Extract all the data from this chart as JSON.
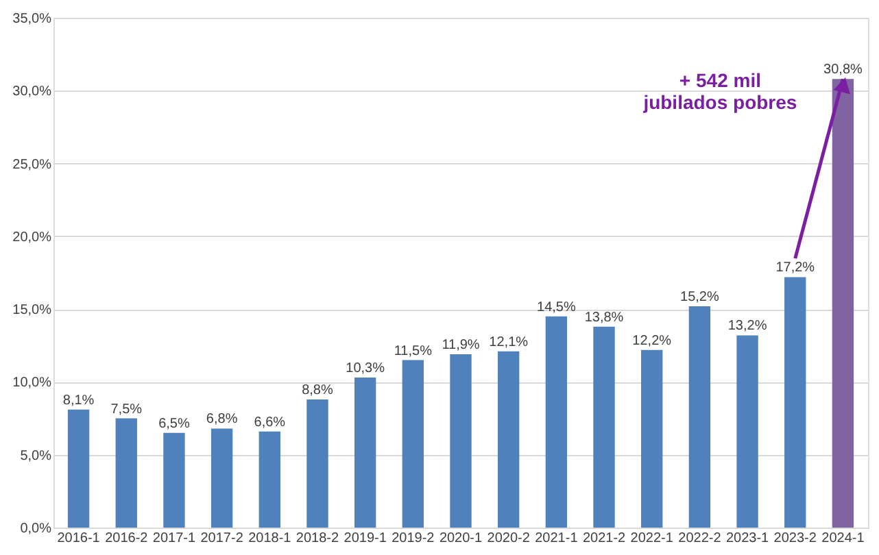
{
  "chart_data": {
    "type": "bar",
    "categories": [
      "2016-1",
      "2016-2",
      "2017-1",
      "2017-2",
      "2018-1",
      "2018-2",
      "2019-1",
      "2019-2",
      "2020-1",
      "2020-2",
      "2021-1",
      "2021-2",
      "2022-1",
      "2022-2",
      "2023-1",
      "2023-2",
      "2024-1"
    ],
    "values": [
      8.1,
      7.5,
      6.5,
      6.8,
      6.6,
      8.8,
      10.3,
      11.5,
      11.9,
      12.1,
      14.5,
      13.8,
      12.2,
      15.2,
      13.2,
      17.2,
      30.8
    ],
    "value_labels": [
      "8,1%",
      "7,5%",
      "6,5%",
      "6,8%",
      "6,6%",
      "8,8%",
      "10,3%",
      "11,5%",
      "11,9%",
      "12,1%",
      "14,5%",
      "13,8%",
      "12,2%",
      "15,2%",
      "13,2%",
      "17,2%",
      "30,8%"
    ],
    "colors": [
      "#4f81bd",
      "#4f81bd",
      "#4f81bd",
      "#4f81bd",
      "#4f81bd",
      "#4f81bd",
      "#4f81bd",
      "#4f81bd",
      "#4f81bd",
      "#4f81bd",
      "#4f81bd",
      "#4f81bd",
      "#4f81bd",
      "#4f81bd",
      "#4f81bd",
      "#4f81bd",
      "#8064a2"
    ],
    "ylim": [
      0,
      35
    ],
    "yticks": [
      {
        "value": 0,
        "label": "0,0%"
      },
      {
        "value": 5,
        "label": "5,0%"
      },
      {
        "value": 10,
        "label": "10,0%"
      },
      {
        "value": 15,
        "label": "15,0%"
      },
      {
        "value": 20,
        "label": "20,0%"
      },
      {
        "value": 25,
        "label": "25,0%"
      },
      {
        "value": 30,
        "label": "30,0%"
      },
      {
        "value": 35,
        "label": "35,0%"
      }
    ],
    "grid": "y",
    "annotations": [
      {
        "text": "+ 542 mil\njubilados pobres",
        "x": "2024-1",
        "y": 30.8
      }
    ]
  }
}
